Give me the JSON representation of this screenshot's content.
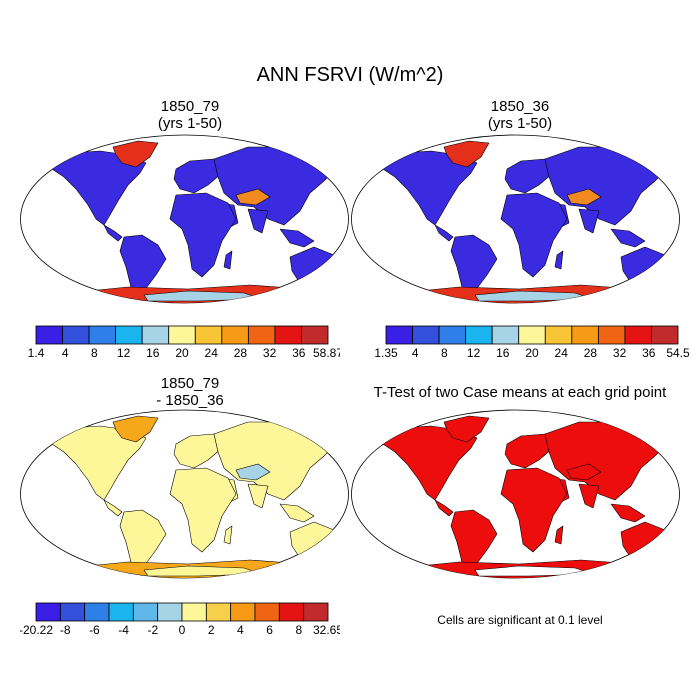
{
  "title": "ANN FSRVI (W/m^2)",
  "panels": [
    {
      "line1": "1850_79",
      "line2": "(yrs 1-50)"
    },
    {
      "line1": "1850_36",
      "line2": "(yrs 1-50)"
    },
    {
      "line1": "1850_79",
      "line2": "- 1850_36"
    },
    {
      "line1": "T-Test of two Case means at each grid point",
      "line2": ""
    }
  ],
  "colorbars": [
    {
      "labels": [
        "1.4",
        "4",
        "8",
        "12",
        "16",
        "20",
        "24",
        "28",
        "32",
        "36",
        "58.87"
      ],
      "colors": [
        "#3a1fe6",
        "#3350dc",
        "#2f7fe8",
        "#1ab4ee",
        "#a7d3e6",
        "#fdf79a",
        "#f7c535",
        "#f79b17",
        "#ef6513",
        "#e41414",
        "#c22b2b"
      ]
    },
    {
      "labels": [
        "1.35",
        "4",
        "8",
        "12",
        "16",
        "20",
        "24",
        "28",
        "32",
        "36",
        "54.5"
      ],
      "colors": [
        "#3a1fe6",
        "#3350dc",
        "#2f7fe8",
        "#1ab4ee",
        "#a7d3e6",
        "#fdf79a",
        "#f7c535",
        "#f79b17",
        "#ef6513",
        "#e41414",
        "#c22b2b"
      ]
    },
    {
      "labels": [
        "-20.22",
        "-8",
        "-6",
        "-4",
        "-2",
        "0",
        "2",
        "4",
        "6",
        "8",
        "32.65"
      ],
      "colors": [
        "#3a1fe6",
        "#3350dc",
        "#2f7fe8",
        "#1ab4ee",
        "#5fb8e9",
        "#a7d3e6",
        "#fdf79a",
        "#f7d04b",
        "#f79b17",
        "#ef6513",
        "#e41414",
        "#c22b2b"
      ]
    }
  ],
  "map_fills": [
    {
      "land": "#3a2be0",
      "high": "#f08a20",
      "ice": "#e4301a",
      "sheet": "#a7d3e6"
    },
    {
      "land": "#3a2be0",
      "high": "#f08a20",
      "ice": "#e4301a",
      "sheet": "#a7d3e6"
    },
    {
      "land": "#fdf79a",
      "high": "#a7d3e6",
      "ice": "#f7a81a",
      "sheet": "#fdf79a"
    },
    {
      "land": "#ee0d0d",
      "high": "#ee0d0d",
      "ice": "#ee0d0d",
      "sheet": "#ffffff"
    }
  ],
  "significance_note": "Cells are significant at 0.1 level"
}
